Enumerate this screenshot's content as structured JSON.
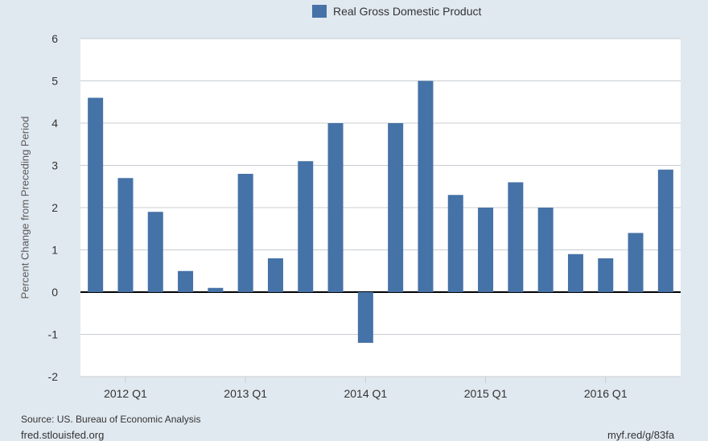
{
  "legend": {
    "label": "Real Gross Domestic Product",
    "color": "#4572a7"
  },
  "footer": {
    "source": "Source: US. Bureau of Economic Analysis",
    "site": "fred.stlouisfed.org",
    "shortlink": "myf.red/g/83fa"
  },
  "chart_data": {
    "type": "bar",
    "ylabel": "Percent Change from Preceding Period",
    "ylim": [
      -2,
      6
    ],
    "yticks": [
      -2,
      -1,
      0,
      1,
      2,
      3,
      4,
      5,
      6
    ],
    "x_tick_labels": [
      "2012 Q1",
      "2013 Q1",
      "2014 Q1",
      "2015 Q1",
      "2016 Q1"
    ],
    "grid": true,
    "legend_position": "top-center",
    "series": [
      {
        "name": "Real Gross Domestic Product",
        "color": "#4572a7",
        "x": [
          "2011 Q4",
          "2012 Q1",
          "2012 Q2",
          "2012 Q3",
          "2012 Q4",
          "2013 Q1",
          "2013 Q2",
          "2013 Q3",
          "2013 Q4",
          "2014 Q1",
          "2014 Q2",
          "2014 Q3",
          "2014 Q4",
          "2015 Q1",
          "2015 Q2",
          "2015 Q3",
          "2015 Q4",
          "2016 Q1",
          "2016 Q2",
          "2016 Q3"
        ],
        "values": [
          4.6,
          2.7,
          1.9,
          0.5,
          0.1,
          2.8,
          0.8,
          3.1,
          4.0,
          -1.2,
          4.0,
          5.0,
          2.3,
          2.0,
          2.6,
          2.0,
          0.9,
          0.8,
          1.4,
          2.9
        ]
      }
    ]
  }
}
